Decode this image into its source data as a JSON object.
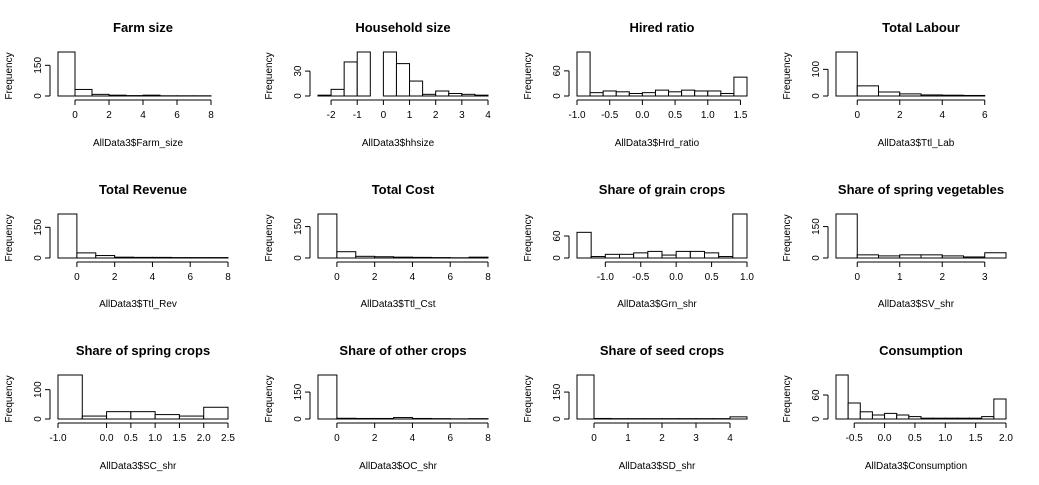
{
  "chart_data": [
    {
      "type": "bar",
      "title": "Farm size",
      "xlabel": "AllData3$Farm_size",
      "ylabel": "Frequency",
      "bin_edges": [
        -1,
        0,
        1,
        2,
        3,
        4,
        5,
        6,
        7,
        8,
        9
      ],
      "values": [
        215,
        32,
        8,
        4,
        2,
        4,
        1,
        1,
        1,
        0
      ],
      "xlim": [
        -1,
        9
      ],
      "xticks": [
        0,
        2,
        4,
        6,
        8
      ],
      "ylim": [
        0,
        215
      ],
      "yticks": [
        0,
        150
      ]
    },
    {
      "type": "bar",
      "title": "Household size",
      "xlabel": "AllData3$hhsize",
      "ylabel": "Frequency",
      "bin_edges": [
        -2.5,
        -2,
        -1.5,
        -1,
        -0.5,
        0,
        0.5,
        1,
        1.5,
        2,
        2.5,
        3,
        3.5,
        4
      ],
      "values": [
        1,
        8,
        41,
        53,
        0,
        53,
        39,
        18,
        2,
        6,
        3,
        2,
        1
      ],
      "xlim": [
        -2.5,
        4
      ],
      "xticks": [
        -2,
        -1,
        0,
        1,
        2,
        3,
        4
      ],
      "ylim": [
        0,
        53
      ],
      "yticks": [
        0,
        30
      ]
    },
    {
      "type": "bar",
      "title": "Hired ratio",
      "xlabel": "AllData3$Hrd_ratio",
      "ylabel": "Frequency",
      "bin_edges": [
        -1,
        -0.8,
        -0.6,
        -0.4,
        -0.2,
        0,
        0.2,
        0.4,
        0.6,
        0.8,
        1,
        1.2,
        1.4,
        1.6
      ],
      "values": [
        105,
        8,
        12,
        10,
        6,
        8,
        14,
        10,
        14,
        12,
        12,
        6,
        45
      ],
      "xlim": [
        -1,
        1.6
      ],
      "xticks": [
        -1.0,
        -0.5,
        0.0,
        0.5,
        1.0,
        1.5
      ],
      "ylim": [
        0,
        105
      ],
      "yticks": [
        0,
        60
      ]
    },
    {
      "type": "bar",
      "title": "Total Labour",
      "xlabel": "AllData3$Ttl_Lab",
      "ylabel": "Frequency",
      "bin_edges": [
        -1,
        0,
        1,
        2,
        3,
        4,
        5,
        6,
        7
      ],
      "values": [
        165,
        38,
        15,
        8,
        4,
        3,
        2,
        0
      ],
      "xlim": [
        -1,
        7
      ],
      "xticks": [
        0,
        2,
        4,
        6
      ],
      "ylim": [
        0,
        165
      ],
      "yticks": [
        0,
        100
      ]
    },
    {
      "type": "bar",
      "title": "Total Revenue",
      "xlabel": "AllData3$Ttl_Rev",
      "ylabel": "Frequency",
      "bin_edges": [
        -1,
        0,
        1,
        2,
        3,
        4,
        5,
        6,
        7,
        8
      ],
      "values": [
        215,
        25,
        12,
        4,
        3,
        3,
        2,
        2,
        2
      ],
      "xlim": [
        -1,
        8
      ],
      "xticks": [
        0,
        2,
        4,
        6,
        8
      ],
      "ylim": [
        0,
        215
      ],
      "yticks": [
        0,
        150
      ]
    },
    {
      "type": "bar",
      "title": "Total Cost",
      "xlabel": "AllData3$Ttl_Cst",
      "ylabel": "Frequency",
      "bin_edges": [
        -1,
        0,
        1,
        2,
        3,
        4,
        5,
        6,
        7,
        8
      ],
      "values": [
        210,
        30,
        8,
        6,
        4,
        3,
        2,
        1,
        4
      ],
      "xlim": [
        -1,
        8
      ],
      "xticks": [
        0,
        2,
        4,
        6,
        8
      ],
      "ylim": [
        0,
        210
      ],
      "yticks": [
        0,
        150
      ]
    },
    {
      "type": "bar",
      "title": "Share of grain crops",
      "xlabel": "AllData3$Grn_shr",
      "ylabel": "Frequency",
      "bin_edges": [
        -1.4,
        -1.2,
        -1,
        -0.8,
        -0.6,
        -0.4,
        -0.2,
        0,
        0.2,
        0.4,
        0.6,
        0.8,
        1
      ],
      "values": [
        70,
        4,
        10,
        10,
        14,
        18,
        8,
        18,
        18,
        14,
        4,
        120
      ],
      "xlim": [
        -1.4,
        1.0
      ],
      "xticks": [
        -1.0,
        -0.5,
        0.0,
        0.5,
        1.0
      ],
      "ylim": [
        0,
        120
      ],
      "yticks": [
        0,
        60
      ]
    },
    {
      "type": "bar",
      "title": "Share of spring vegetables",
      "xlabel": "AllData3$SV_shr",
      "ylabel": "Frequency",
      "bin_edges": [
        -0.5,
        0,
        0.5,
        1,
        1.5,
        2,
        2.5,
        3,
        3.5
      ],
      "values": [
        210,
        15,
        10,
        15,
        15,
        10,
        5,
        25
      ],
      "xlim": [
        -0.5,
        3.5
      ],
      "xticks": [
        0,
        1,
        2,
        3
      ],
      "ylim": [
        0,
        210
      ],
      "yticks": [
        0,
        150
      ]
    },
    {
      "type": "bar",
      "title": "Share of spring crops",
      "xlabel": "AllData3$SC_shr",
      "ylabel": "Frequency",
      "bin_edges": [
        -1,
        -0.5,
        0,
        0.5,
        1,
        1.5,
        2,
        2.5
      ],
      "values": [
        150,
        10,
        25,
        25,
        15,
        10,
        40
      ],
      "xlim": [
        -1,
        2.5
      ],
      "xticks": [
        -1.0,
        0.0,
        0.5,
        1.0,
        1.5,
        2.0,
        2.5
      ],
      "ylim": [
        0,
        150
      ],
      "yticks": [
        0,
        100
      ]
    },
    {
      "type": "bar",
      "title": "Share of other crops",
      "xlabel": "AllData3$OC_shr",
      "ylabel": "Frequency",
      "bin_edges": [
        -1,
        0,
        1,
        2,
        3,
        4,
        5,
        6,
        7,
        8
      ],
      "values": [
        245,
        4,
        3,
        3,
        8,
        3,
        2,
        1,
        2
      ],
      "xlim": [
        -1,
        8
      ],
      "xticks": [
        0,
        2,
        4,
        6,
        8
      ],
      "ylim": [
        0,
        245
      ],
      "yticks": [
        0,
        150
      ]
    },
    {
      "type": "bar",
      "title": "Share of seed crops",
      "xlabel": "AllData3$SD_shr",
      "ylabel": "Frequency",
      "bin_edges": [
        -0.5,
        0,
        0.5,
        1,
        1.5,
        2,
        2.5,
        3,
        3.5,
        4,
        4.5
      ],
      "values": [
        245,
        3,
        2,
        2,
        2,
        2,
        2,
        2,
        2,
        12
      ],
      "xlim": [
        -0.5,
        4.5
      ],
      "xticks": [
        0,
        1,
        2,
        3,
        4
      ],
      "ylim": [
        0,
        245
      ],
      "yticks": [
        0,
        150
      ]
    },
    {
      "type": "bar",
      "title": "Consumption",
      "xlabel": "AllData3$Consumption",
      "ylabel": "Frequency",
      "bin_edges": [
        -0.8,
        -0.6,
        -0.4,
        -0.2,
        0,
        0.2,
        0.4,
        0.6,
        0.8,
        1,
        1.2,
        1.4,
        1.6,
        1.8,
        2
      ],
      "values": [
        110,
        40,
        18,
        10,
        14,
        10,
        6,
        2,
        2,
        2,
        2,
        2,
        6,
        50
      ],
      "xlim": [
        -0.8,
        2.0
      ],
      "xticks": [
        -0.5,
        0.0,
        0.5,
        1.0,
        1.5,
        2.0
      ],
      "ylim": [
        0,
        110
      ],
      "yticks": [
        0,
        60
      ]
    }
  ]
}
